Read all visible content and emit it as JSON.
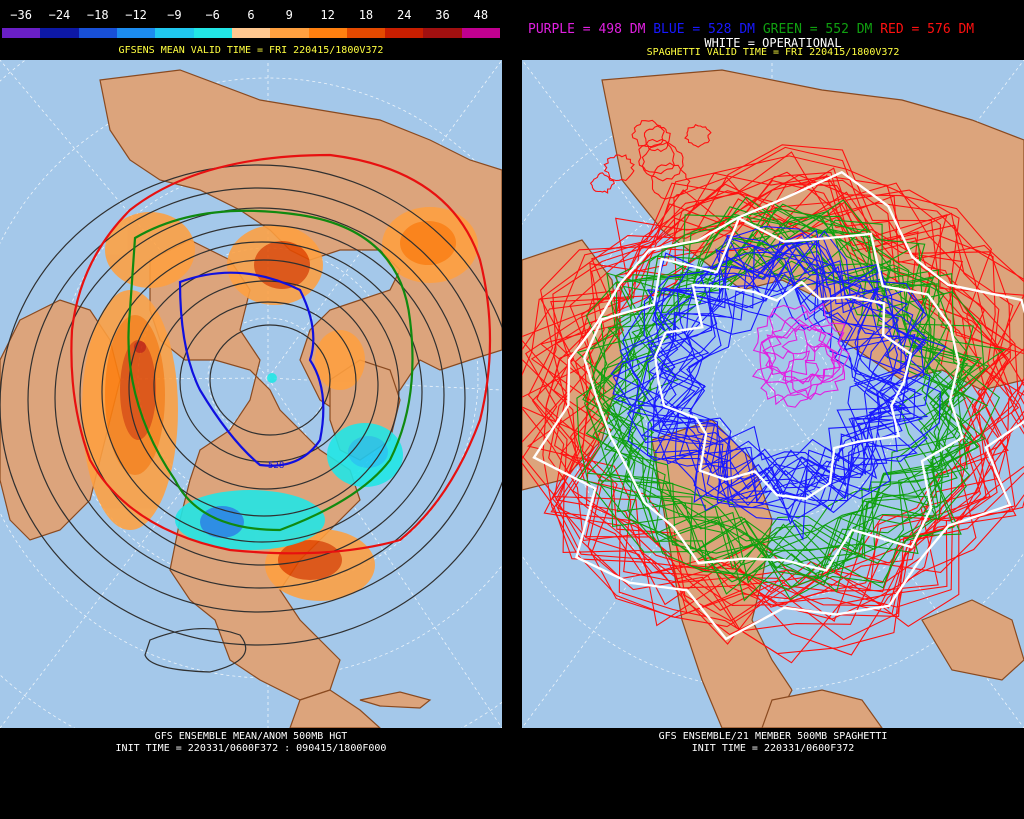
{
  "left_panel": {
    "scale_labels": [
      "−36",
      "−24",
      "−18",
      "−12",
      "−9",
      "−6",
      "6",
      "9",
      "12",
      "18",
      "24",
      "36",
      "48"
    ],
    "scale_colors": [
      "#6a1fc6",
      "#0d18a6",
      "#1850d8",
      "#1c8cf0",
      "#20c8f0",
      "#22e6e6",
      "#ffc890",
      "#ffa040",
      "#ff8010",
      "#e44a00",
      "#c81e00",
      "#a01010",
      "#c00090"
    ],
    "valid_time": "GFSENS MEAN VALID TIME = FRI 220415/1800V372",
    "contour_label": "528",
    "footer_title": "GFS ENSEMBLE MEAN/ANOM 500MB HGT",
    "footer_init": "INIT TIME = 220331/0600F372 : 090415/1800F000"
  },
  "right_panel": {
    "legend": [
      {
        "text": "PURPLE = 498 DM",
        "color": "#e020e0"
      },
      {
        "text": "BLUE = 528 DM",
        "color": "#1818ff"
      },
      {
        "text": "GREEN = 552 DM",
        "color": "#10a010"
      },
      {
        "text": "RED = 576 DM",
        "color": "#ff1010"
      }
    ],
    "operational_label": "WHITE = OPERATIONAL",
    "valid_time": "SPAGHETTI VALID TIME = FRI 220415/1800V372",
    "footer_title": "GFS ENSEMBLE/21 MEMBER 500MB SPAGHETTI",
    "footer_init": "INIT TIME = 220331/0600F372"
  },
  "colors": {
    "ocean": "#a4c8ea",
    "land": "#dca47c",
    "coast": "#8a4a20",
    "header_yellow": "#ffff40"
  }
}
